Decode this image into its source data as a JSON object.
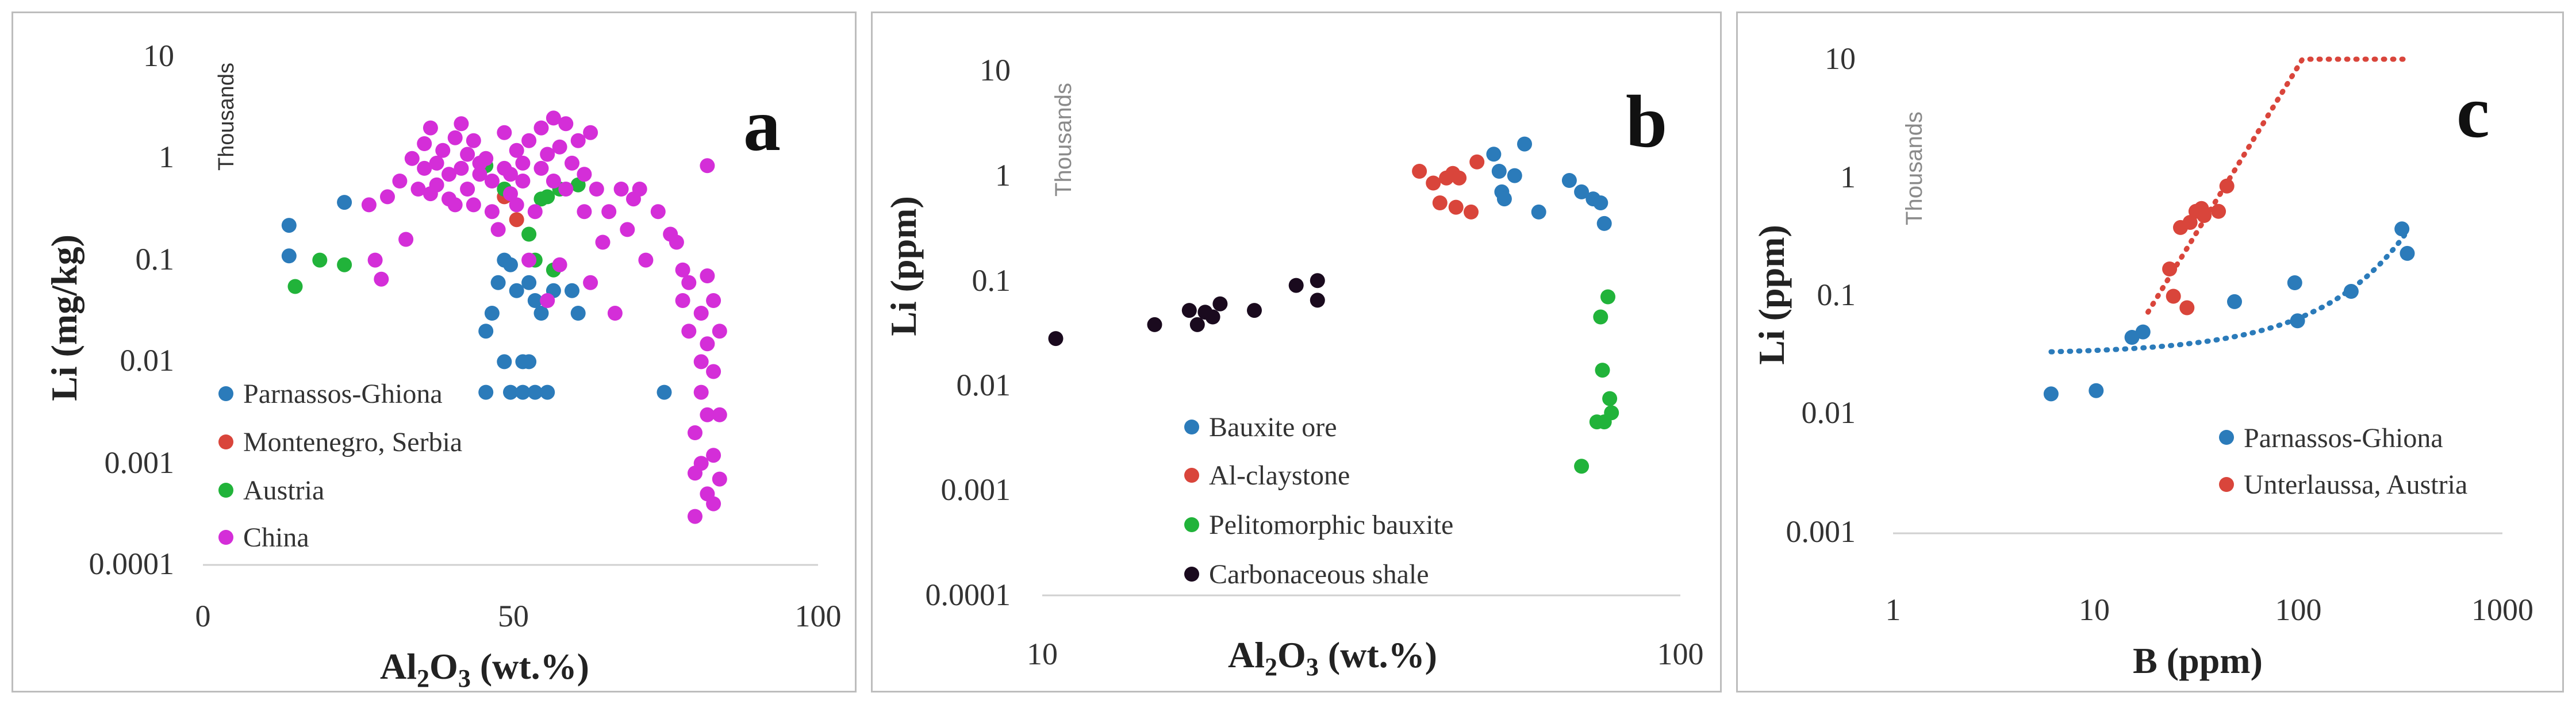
{
  "colors": {
    "blue": "#2b7bba",
    "red": "#d9453b",
    "green": "#21b33a",
    "magenta": "#d42ed8",
    "dark": "#1a0a1e",
    "grey_thousands": "#8a8a8a"
  },
  "chart_data": [
    {
      "type": "scatter",
      "panel_label": "a",
      "ylabel": "Li (mg/kg)",
      "xlabel": "Al2O3 (wt.%)",
      "xlabel_main": "Al",
      "xlabel_sub1": "2",
      "xlabel_mid": "O",
      "xlabel_sub2": "3",
      "xlabel_tail": " (wt.%)",
      "axis_note": "Thousands",
      "xscale": "linear",
      "yscale": "log",
      "xlim": [
        0,
        100
      ],
      "ylim": [
        0.0001,
        10
      ],
      "x_ticks": [
        "0",
        "50",
        "100"
      ],
      "y_ticks": [
        "0.0001",
        "0.001",
        "0.01",
        "0.1",
        "1",
        "10"
      ],
      "legend": "bottom-left",
      "series": [
        {
          "name": "Parnassos-Ghiona",
          "color": "#2b7bba",
          "points": [
            [
              14,
              0.22
            ],
            [
              14,
              0.11
            ],
            [
              23,
              0.37
            ],
            [
              46,
              0.005
            ],
            [
              46,
              0.02
            ],
            [
              47,
              0.03
            ],
            [
              48,
              0.06
            ],
            [
              49,
              0.1
            ],
            [
              49,
              0.01
            ],
            [
              50,
              0.09
            ],
            [
              50,
              0.005
            ],
            [
              51,
              0.05
            ],
            [
              52,
              0.01
            ],
            [
              52,
              0.005
            ],
            [
              53,
              0.06
            ],
            [
              53,
              0.01
            ],
            [
              54,
              0.04
            ],
            [
              54,
              0.005
            ],
            [
              55,
              0.03
            ],
            [
              56,
              0.005
            ],
            [
              57,
              0.05
            ],
            [
              60,
              0.05
            ],
            [
              61,
              0.03
            ],
            [
              75,
              0.005
            ]
          ]
        },
        {
          "name": "Montenegro, Serbia",
          "color": "#d9453b",
          "points": [
            [
              49,
              0.42
            ],
            [
              51,
              0.25
            ]
          ]
        },
        {
          "name": "Austria",
          "color": "#21b33a",
          "points": [
            [
              15,
              0.055
            ],
            [
              19,
              0.1
            ],
            [
              23,
              0.09
            ],
            [
              46,
              0.85
            ],
            [
              49,
              0.5
            ],
            [
              53,
              0.18
            ],
            [
              54,
              0.1
            ],
            [
              55,
              0.4
            ],
            [
              56,
              0.42
            ],
            [
              57,
              0.08
            ],
            [
              58,
              0.5
            ],
            [
              61,
              0.55
            ]
          ]
        },
        {
          "name": "China",
          "color": "#d42ed8",
          "points": [
            [
              27,
              0.35
            ],
            [
              28,
              0.1
            ],
            [
              29,
              0.065
            ],
            [
              30,
              0.42
            ],
            [
              32,
              0.6
            ],
            [
              33,
              0.16
            ],
            [
              34,
              1.0
            ],
            [
              35,
              0.5
            ],
            [
              36,
              0.8
            ],
            [
              36,
              1.4
            ],
            [
              37,
              2.0
            ],
            [
              37,
              0.45
            ],
            [
              38,
              0.9
            ],
            [
              38,
              0.55
            ],
            [
              39,
              1.2
            ],
            [
              40,
              0.4
            ],
            [
              40,
              0.7
            ],
            [
              41,
              1.6
            ],
            [
              41,
              0.35
            ],
            [
              42,
              2.2
            ],
            [
              42,
              0.8
            ],
            [
              43,
              1.1
            ],
            [
              43,
              0.5
            ],
            [
              44,
              0.35
            ],
            [
              44,
              1.5
            ],
            [
              45,
              0.7
            ],
            [
              45,
              0.9
            ],
            [
              46,
              1.0
            ],
            [
              47,
              0.6
            ],
            [
              47,
              0.3
            ],
            [
              48,
              0.2
            ],
            [
              49,
              1.8
            ],
            [
              49,
              0.8
            ],
            [
              50,
              0.45
            ],
            [
              50,
              0.7
            ],
            [
              51,
              1.2
            ],
            [
              51,
              0.35
            ],
            [
              52,
              0.9
            ],
            [
              52,
              0.6
            ],
            [
              53,
              1.5
            ],
            [
              53,
              0.1
            ],
            [
              54,
              0.3
            ],
            [
              55,
              2.0
            ],
            [
              55,
              0.8
            ],
            [
              56,
              1.1
            ],
            [
              56,
              0.04
            ],
            [
              57,
              0.6
            ],
            [
              57,
              2.5
            ],
            [
              58,
              1.3
            ],
            [
              58,
              0.09
            ],
            [
              59,
              2.2
            ],
            [
              59,
              0.5
            ],
            [
              60,
              0.9
            ],
            [
              61,
              1.5
            ],
            [
              62,
              0.7
            ],
            [
              62,
              0.3
            ],
            [
              63,
              1.8
            ],
            [
              63,
              0.06
            ],
            [
              64,
              0.5
            ],
            [
              65,
              0.15
            ],
            [
              66,
              0.3
            ],
            [
              67,
              0.03
            ],
            [
              68,
              0.5
            ],
            [
              69,
              0.2
            ],
            [
              70,
              0.4
            ],
            [
              71,
              0.5
            ],
            [
              72,
              0.1
            ],
            [
              74,
              0.3
            ],
            [
              76,
              0.18
            ],
            [
              77,
              0.15
            ],
            [
              78,
              0.08
            ],
            [
              78,
              0.04
            ],
            [
              79,
              0.06
            ],
            [
              79,
              0.02
            ],
            [
              80,
              0.0008
            ],
            [
              80,
              0.0003
            ],
            [
              80,
              0.002
            ],
            [
              81,
              0.03
            ],
            [
              81,
              0.01
            ],
            [
              81,
              0.005
            ],
            [
              81,
              0.001
            ],
            [
              82,
              0.85
            ],
            [
              82,
              0.07
            ],
            [
              82,
              0.015
            ],
            [
              82,
              0.003
            ],
            [
              82,
              0.0005
            ],
            [
              83,
              0.04
            ],
            [
              83,
              0.008
            ],
            [
              83,
              0.0012
            ],
            [
              83,
              0.0004
            ],
            [
              84,
              0.02
            ],
            [
              84,
              0.003
            ],
            [
              84,
              0.0007
            ]
          ]
        }
      ]
    },
    {
      "type": "scatter",
      "panel_label": "b",
      "ylabel": "Li (ppm)",
      "xlabel": "Al2O3 (wt.%)",
      "xlabel_main": "Al",
      "xlabel_sub1": "2",
      "xlabel_mid": "O",
      "xlabel_sub2": "3",
      "xlabel_tail": " (wt.%)",
      "axis_note": "Thousands",
      "xscale": "log",
      "yscale": "log",
      "xlim": [
        10,
        100
      ],
      "ylim": [
        0.0001,
        10
      ],
      "x_ticks": [
        "10",
        "100"
      ],
      "y_ticks": [
        "0.0001",
        "0.001",
        "0.01",
        "0.1",
        "1",
        "10"
      ],
      "legend": "bottom-center",
      "series": [
        {
          "name": "Bauxite ore",
          "color": "#2b7bba",
          "points": [
            [
              51,
              1.6
            ],
            [
              52,
              1.1
            ],
            [
              52.5,
              0.7
            ],
            [
              53,
              0.6
            ],
            [
              55,
              1.0
            ],
            [
              57,
              2.0
            ],
            [
              60,
              0.45
            ],
            [
              67,
              0.9
            ],
            [
              70,
              0.7
            ],
            [
              73,
              0.6
            ],
            [
              75,
              0.55
            ],
            [
              76,
              0.35
            ]
          ]
        },
        {
          "name": "Al-claystone",
          "color": "#d9453b",
          "points": [
            [
              39,
              1.1
            ],
            [
              41,
              0.85
            ],
            [
              42,
              0.55
            ],
            [
              43,
              0.95
            ],
            [
              44,
              1.05
            ],
            [
              44.5,
              0.5
            ],
            [
              45,
              0.95
            ],
            [
              47,
              0.45
            ],
            [
              48,
              1.35
            ]
          ]
        },
        {
          "name": "Pelitomorphic bauxite",
          "color": "#21b33a",
          "points": [
            [
              70,
              0.0017
            ],
            [
              74,
              0.0045
            ],
            [
              75,
              0.045
            ],
            [
              75.5,
              0.014
            ],
            [
              76,
              0.0045
            ],
            [
              77,
              0.07
            ],
            [
              77.5,
              0.0075
            ],
            [
              78,
              0.0055
            ]
          ]
        },
        {
          "name": "Carbonaceous shale",
          "color": "#1a0a1e",
          "points": [
            [
              10.5,
              0.028
            ],
            [
              15,
              0.038
            ],
            [
              17,
              0.052
            ],
            [
              17.5,
              0.038
            ],
            [
              18,
              0.05
            ],
            [
              18.5,
              0.045
            ],
            [
              19,
              0.06
            ],
            [
              21.5,
              0.052
            ],
            [
              25,
              0.09
            ],
            [
              27,
              0.1
            ],
            [
              27,
              0.065
            ]
          ]
        }
      ]
    },
    {
      "type": "scatter",
      "panel_label": "c",
      "ylabel": "Li (ppm)",
      "xlabel": "B (ppm)",
      "axis_note": "Thousands",
      "xscale": "log",
      "yscale": "log",
      "xlim": [
        1,
        1000
      ],
      "ylim": [
        0.001,
        10
      ],
      "x_ticks": [
        "1",
        "10",
        "100",
        "1000"
      ],
      "y_ticks": [
        "0.001",
        "0.01",
        "0.1",
        "1",
        "10"
      ],
      "legend": "bottom-right",
      "series": [
        {
          "name": "Parnassos-Ghiona",
          "color": "#2b7bba",
          "points": [
            [
              6,
              0.015
            ],
            [
              10,
              0.016
            ],
            [
              15,
              0.045
            ],
            [
              17,
              0.05
            ],
            [
              48,
              0.09
            ],
            [
              95,
              0.13
            ],
            [
              98,
              0.062
            ],
            [
              180,
              0.11
            ],
            [
              320,
              0.37
            ],
            [
              340,
              0.23
            ]
          ],
          "trendline": {
            "style": "dotted",
            "x_range": [
              6,
              340
            ]
          }
        },
        {
          "name": "Unterlaussa, Austria",
          "color": "#d9453b",
          "points": [
            [
              23,
              0.17
            ],
            [
              24,
              0.1
            ],
            [
              26,
              0.38
            ],
            [
              28,
              0.08
            ],
            [
              29,
              0.42
            ],
            [
              31,
              0.52
            ],
            [
              33,
              0.55
            ],
            [
              34,
              0.48
            ],
            [
              40,
              0.52
            ],
            [
              44,
              0.85
            ]
          ],
          "trendline": {
            "style": "dotted",
            "x_range": [
              18,
              330
            ]
          }
        }
      ]
    }
  ]
}
